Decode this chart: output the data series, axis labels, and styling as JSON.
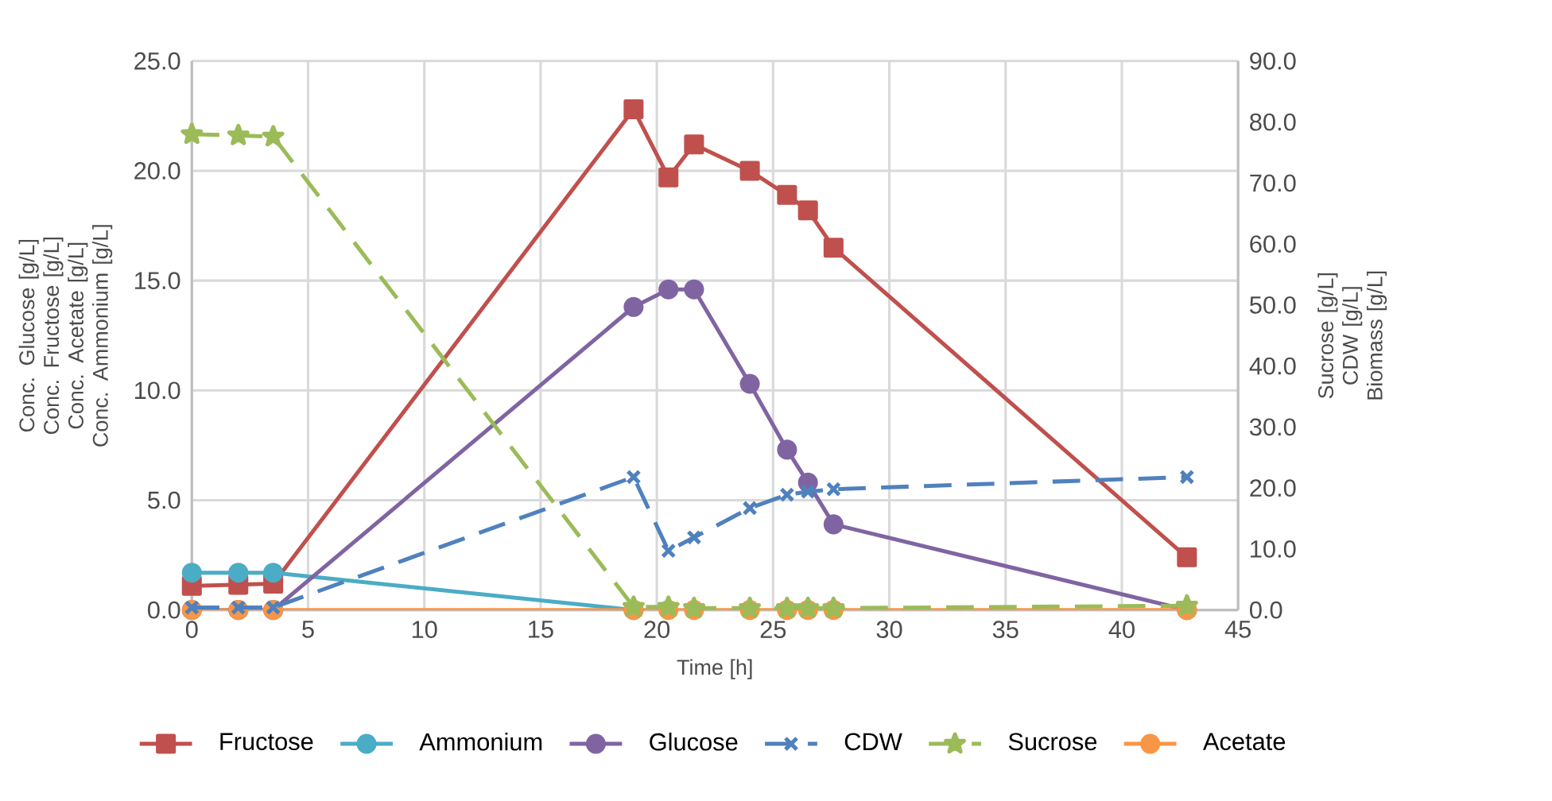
{
  "chart_data": {
    "type": "line",
    "xlabel": "Time [h]",
    "ylabel": "Conc. Glucose [g/L] Conc. Fructose [g/L] Conc. Acetate [g/L] Conc. Ammonium [g/L]",
    "y2label": "Sucrose [g/L] CDW [g/L] Biomass [g/L]",
    "x": [
      0,
      2,
      3.5,
      19,
      20.5,
      21.6,
      24,
      25.6,
      26.5,
      27.6,
      42.8
    ],
    "series": [
      {
        "name": "Fructose",
        "color": "#c0504d",
        "marker": "square",
        "line_style": "solid",
        "values": [
          1.1,
          1.15,
          1.2,
          22.8,
          19.7,
          21.2,
          20.0,
          18.9,
          18.2,
          16.5,
          2.4
        ]
      },
      {
        "name": "Ammonium",
        "color": "#4bacc6",
        "marker": "circle",
        "line_style": "solid",
        "values": [
          1.7,
          1.7,
          1.7,
          0,
          null,
          null,
          null,
          null,
          null,
          null,
          null
        ]
      },
      {
        "name": "Glucose",
        "color": "#8064a2",
        "marker": "circle",
        "line_style": "solid",
        "values": [
          0,
          0,
          0,
          13.8,
          14.6,
          14.6,
          10.3,
          7.3,
          5.8,
          3.9,
          0
        ]
      },
      {
        "name": "CDW",
        "color": "#4f81bd",
        "marker": "cross",
        "line_style": "dashed",
        "axis": "y2",
        "values": [
          0.4,
          0.4,
          0.4,
          21.8,
          9.7,
          11.9,
          16.7,
          18.9,
          19.4,
          19.8,
          21.8
        ]
      },
      {
        "name": "Sucrose",
        "color": "#9bbb59",
        "marker": "star",
        "line_style": "dashed",
        "axis": "y2",
        "values": [
          78.0,
          77.8,
          77.6,
          0.5,
          0.5,
          0.3,
          0.3,
          0.3,
          0.3,
          0.3,
          0.7
        ]
      },
      {
        "name": "Acetate",
        "color": "#f79646",
        "marker": "circle",
        "line_style": "solid",
        "values": [
          0,
          0,
          0,
          0,
          0,
          0,
          0,
          0,
          0,
          0,
          0
        ]
      }
    ],
    "xlim": [
      0,
      45
    ],
    "xticks": [
      0,
      5,
      10,
      15,
      20,
      25,
      30,
      35,
      40,
      45
    ],
    "ylim": [
      0,
      25
    ],
    "yticks": [
      {
        "value": 0,
        "label": "0.0"
      },
      {
        "value": 5,
        "label": "5.0"
      },
      {
        "value": 10,
        "label": "10.0"
      },
      {
        "value": 15,
        "label": "15.0"
      },
      {
        "value": 20,
        "label": "20.0"
      },
      {
        "value": 25,
        "label": "25.0"
      }
    ],
    "y2lim": [
      0,
      90
    ],
    "y2ticks": [
      {
        "value": 0,
        "label": "0.0"
      },
      {
        "value": 10,
        "label": "10.0"
      },
      {
        "value": 20,
        "label": "20.0"
      },
      {
        "value": 30,
        "label": "30.0"
      },
      {
        "value": 40,
        "label": "40.0"
      },
      {
        "value": 50,
        "label": "50.0"
      },
      {
        "value": 60,
        "label": "60.0"
      },
      {
        "value": 70,
        "label": "70.0"
      },
      {
        "value": 80,
        "label": "80.0"
      },
      {
        "value": 90,
        "label": "90.0"
      }
    ],
    "grid": true,
    "legend": "bottom"
  }
}
